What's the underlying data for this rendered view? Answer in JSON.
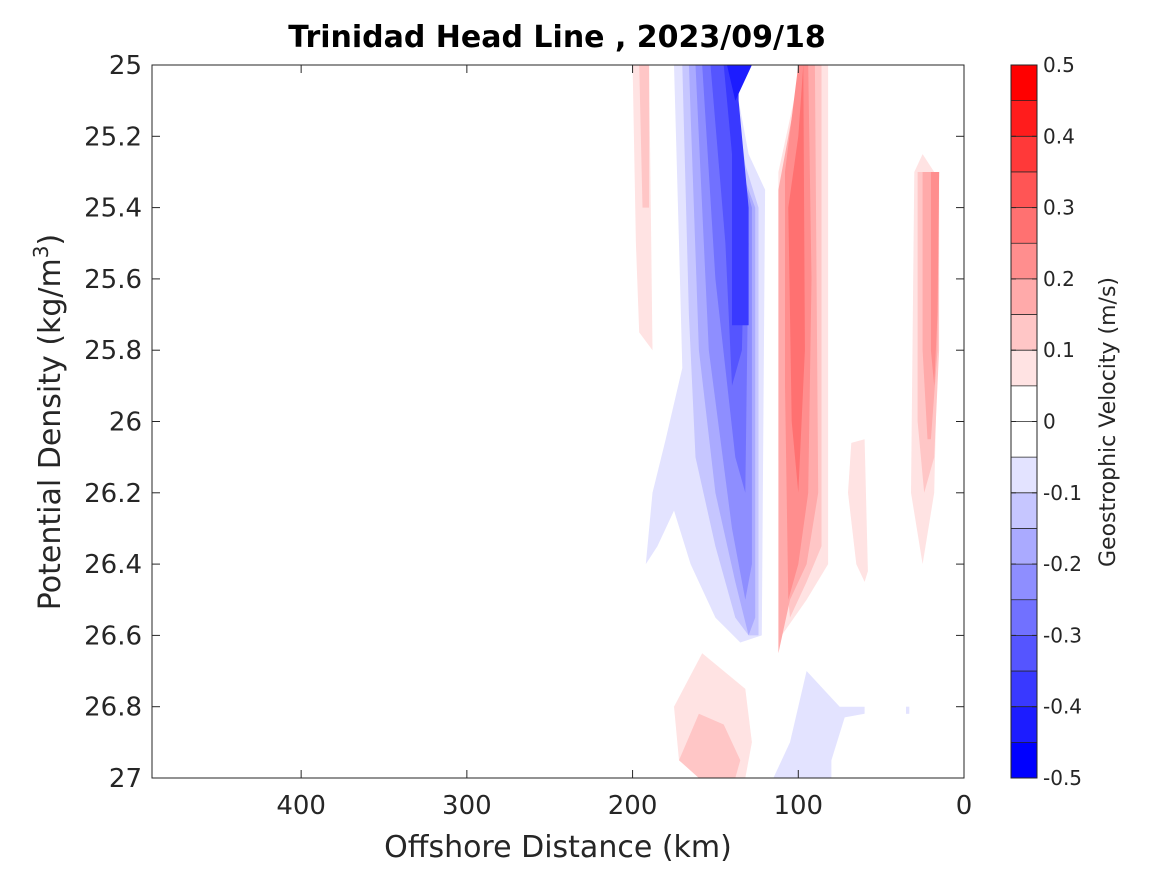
{
  "chart_data": {
    "type": "contour",
    "title": "Trinidad Head Line , 2023/09/18",
    "xlabel": "Offshore Distance (km)",
    "ylabel_text": "Potential Density (kg/m",
    "ylabel_sup": "3",
    "ylabel_close": ")",
    "colorbar_label": "Geostrophic Velocity (m/s)",
    "xlim": [
      490,
      0
    ],
    "x_reversed": true,
    "ylim": [
      25,
      27
    ],
    "y_reversed": true,
    "xticks": [
      400,
      300,
      200,
      100,
      0
    ],
    "xtick_labels": [
      "400",
      "300",
      "200",
      "100",
      "0"
    ],
    "yticks": [
      25,
      25.2,
      25.4,
      25.6,
      25.8,
      26,
      26.2,
      26.4,
      26.6,
      26.8,
      27
    ],
    "ytick_labels": [
      "25",
      "25.2",
      "25.4",
      "25.6",
      "25.8",
      "26",
      "26.2",
      "26.4",
      "26.6",
      "26.8",
      "27"
    ],
    "colorbar": {
      "range": [
        -0.5,
        0.5
      ],
      "ticks": [
        0.5,
        0.4,
        0.3,
        0.2,
        0.1,
        0,
        -0.1,
        -0.2,
        -0.3,
        -0.4,
        -0.5
      ],
      "tick_labels": [
        "0.5",
        "0.4",
        "0.3",
        "0.2",
        "0.1",
        "0",
        "-0.1",
        "-0.2",
        "-0.3",
        "-0.4",
        "-0.5"
      ],
      "levels_top_to_bottom": [
        "#ff0000",
        "#ff1c1c",
        "#ff3939",
        "#ff5555",
        "#ff7171",
        "#ff8e8e",
        "#ffaaaa",
        "#ffc6c6",
        "#ffe3e3",
        "#ffffff",
        "#ffffff",
        "#e3e3ff",
        "#c6c6ff",
        "#aaaaff",
        "#8e8eff",
        "#7171ff",
        "#5555ff",
        "#3939ff",
        "#1c1cff",
        "#0000ff"
      ]
    },
    "contour_regions": [
      {
        "value": 0.1,
        "color": "#ffe3e3",
        "points": [
          [
            200,
            25
          ],
          [
            190,
            25
          ],
          [
            188,
            25.8
          ],
          [
            196,
            25.75
          ],
          [
            198,
            25.5
          ]
        ]
      },
      {
        "value": 0.05,
        "color": "#ffc6c6",
        "points": [
          [
            196,
            25
          ],
          [
            190,
            25
          ],
          [
            190,
            25.4
          ],
          [
            194,
            25.4
          ]
        ]
      },
      {
        "value": -0.1,
        "color": "#e3e3ff",
        "points": [
          [
            175,
            25
          ],
          [
            172,
            25.5
          ],
          [
            170,
            25.85
          ],
          [
            180,
            26.05
          ],
          [
            188,
            26.2
          ],
          [
            192,
            26.4
          ],
          [
            185,
            26.35
          ],
          [
            175,
            26.25
          ],
          [
            165,
            26.4
          ],
          [
            150,
            26.55
          ],
          [
            135,
            26.62
          ],
          [
            122,
            26.6
          ],
          [
            120,
            25.35
          ],
          [
            130,
            25.25
          ],
          [
            140,
            25
          ]
        ]
      },
      {
        "value": -0.15,
        "color": "#c6c6ff",
        "points": [
          [
            170,
            25
          ],
          [
            166,
            25.7
          ],
          [
            162,
            26.1
          ],
          [
            150,
            26.35
          ],
          [
            138,
            26.55
          ],
          [
            130,
            26.6
          ],
          [
            124,
            26.6
          ],
          [
            124,
            25.4
          ],
          [
            132,
            25.28
          ],
          [
            140,
            25
          ]
        ]
      },
      {
        "value": -0.2,
        "color": "#aaaaff",
        "points": [
          [
            166,
            25
          ],
          [
            160,
            25.8
          ],
          [
            150,
            26.2
          ],
          [
            138,
            26.45
          ],
          [
            130,
            26.6
          ],
          [
            126,
            26.55
          ],
          [
            126,
            25.4
          ],
          [
            134,
            25.3
          ],
          [
            140,
            25
          ]
        ]
      },
      {
        "value": -0.25,
        "color": "#8e8eff",
        "points": [
          [
            162,
            25
          ],
          [
            154,
            25.8
          ],
          [
            140,
            26.3
          ],
          [
            132,
            26.5
          ],
          [
            128,
            26.4
          ],
          [
            128,
            25.4
          ],
          [
            134,
            25.3
          ],
          [
            140,
            25
          ]
        ]
      },
      {
        "value": -0.3,
        "color": "#7171ff",
        "points": [
          [
            158,
            25
          ],
          [
            150,
            25.6
          ],
          [
            138,
            26.1
          ],
          [
            132,
            26.2
          ],
          [
            130,
            25.5
          ],
          [
            136,
            25.3
          ],
          [
            140,
            25
          ]
        ]
      },
      {
        "value": -0.35,
        "color": "#5555ff",
        "points": [
          [
            153,
            25
          ],
          [
            144,
            25.5
          ],
          [
            140,
            25.9
          ],
          [
            134,
            25.8
          ],
          [
            132,
            25.4
          ],
          [
            140,
            25
          ]
        ]
      },
      {
        "value": -0.4,
        "color": "#3939ff",
        "points": [
          [
            145,
            25
          ],
          [
            140,
            25.25
          ],
          [
            140,
            25.73
          ],
          [
            130,
            25.73
          ],
          [
            130,
            25.4
          ],
          [
            136,
            25.1
          ],
          [
            136,
            25
          ]
        ]
      },
      {
        "value": -0.45,
        "color": "#1c1cff",
        "points": [
          [
            143,
            25
          ],
          [
            138,
            25.1
          ],
          [
            128,
            25
          ],
          [
            128,
            25
          ]
        ]
      },
      {
        "value": 0.1,
        "color": "#ffe3e3",
        "points": [
          [
            112,
            25.3
          ],
          [
            98,
            25
          ],
          [
            82,
            25
          ],
          [
            82,
            26.4
          ],
          [
            95,
            26.5
          ],
          [
            110,
            26.6
          ],
          [
            112,
            26.1
          ]
        ]
      },
      {
        "value": 0.15,
        "color": "#ffc6c6",
        "points": [
          [
            108,
            25.3
          ],
          [
            98,
            25
          ],
          [
            86,
            25
          ],
          [
            86,
            26.35
          ],
          [
            95,
            26.45
          ],
          [
            105,
            26.55
          ],
          [
            110,
            26.3
          ]
        ]
      },
      {
        "value": 0.2,
        "color": "#ffaaaa",
        "points": [
          [
            112,
            25.35
          ],
          [
            98,
            25
          ],
          [
            90,
            25
          ],
          [
            88,
            26.2
          ],
          [
            95,
            26.4
          ],
          [
            105,
            26.5
          ],
          [
            112,
            26.65
          ]
        ]
      },
      {
        "value": 0.25,
        "color": "#ff8e8e",
        "points": [
          [
            108,
            25.3
          ],
          [
            100,
            25
          ],
          [
            94,
            25
          ],
          [
            92,
            25.6
          ],
          [
            94,
            26.2
          ],
          [
            100,
            26.4
          ],
          [
            106,
            26.5
          ],
          [
            108,
            25.9
          ]
        ]
      },
      {
        "value": 0.3,
        "color": "#ff7171",
        "points": [
          [
            106,
            25.4
          ],
          [
            100,
            25.2
          ],
          [
            97,
            25.0
          ],
          [
            96,
            25.8
          ],
          [
            100,
            26.2
          ],
          [
            104,
            26.0
          ]
        ]
      },
      {
        "value": 0.1,
        "color": "#ffe3e3",
        "points": [
          [
            60,
            26.05
          ],
          [
            68,
            26.06
          ],
          [
            70,
            26.2
          ],
          [
            65,
            26.4
          ],
          [
            60,
            26.45
          ],
          [
            58,
            26.42
          ]
        ]
      },
      {
        "value": 0.1,
        "color": "#ffe3e3",
        "points": [
          [
            30,
            25.3
          ],
          [
            25,
            25.25
          ],
          [
            18,
            25.3
          ],
          [
            15,
            25.6
          ],
          [
            18,
            26.2
          ],
          [
            25,
            26.4
          ],
          [
            32,
            26.2
          ]
        ]
      },
      {
        "value": 0.15,
        "color": "#ffc6c6",
        "points": [
          [
            28,
            25.3
          ],
          [
            15,
            25.3
          ],
          [
            15,
            25.8
          ],
          [
            18,
            26.1
          ],
          [
            24,
            26.2
          ],
          [
            28,
            26
          ]
        ]
      },
      {
        "value": 0.2,
        "color": "#ffaaaa",
        "points": [
          [
            25,
            25.3
          ],
          [
            15,
            25.3
          ],
          [
            16,
            25.8
          ],
          [
            20,
            26.05
          ],
          [
            22,
            26.05
          ],
          [
            25,
            25.8
          ]
        ]
      },
      {
        "value": 0.25,
        "color": "#ff8e8e",
        "points": [
          [
            20,
            25.3
          ],
          [
            15,
            25.3
          ],
          [
            16,
            25.7
          ],
          [
            18,
            25.9
          ],
          [
            20,
            25.8
          ]
        ]
      },
      {
        "value": 0.1,
        "color": "#ffe3e3",
        "points": [
          [
            175,
            26.8
          ],
          [
            158,
            26.65
          ],
          [
            145,
            26.7
          ],
          [
            132,
            26.75
          ],
          [
            128,
            26.9
          ],
          [
            132,
            27
          ],
          [
            160,
            27
          ],
          [
            172,
            26.95
          ]
        ]
      },
      {
        "value": 0.15,
        "color": "#ffc6c6",
        "points": [
          [
            172,
            26.95
          ],
          [
            160,
            26.82
          ],
          [
            145,
            26.85
          ],
          [
            135,
            26.95
          ],
          [
            138,
            27
          ],
          [
            160,
            27
          ]
        ]
      },
      {
        "value": -0.1,
        "color": "#e3e3ff",
        "points": [
          [
            115,
            27
          ],
          [
            105,
            26.9
          ],
          [
            95,
            26.7
          ],
          [
            85,
            26.75
          ],
          [
            75,
            26.8
          ],
          [
            60,
            26.8
          ],
          [
            60,
            26.82
          ],
          [
            72,
            26.83
          ],
          [
            80,
            26.95
          ],
          [
            80,
            27
          ]
        ]
      },
      {
        "value": -0.1,
        "color": "#e3e3ff",
        "points": [
          [
            35,
            26.8
          ],
          [
            35,
            26.82
          ],
          [
            33,
            26.82
          ],
          [
            33,
            26.8
          ]
        ]
      }
    ]
  }
}
